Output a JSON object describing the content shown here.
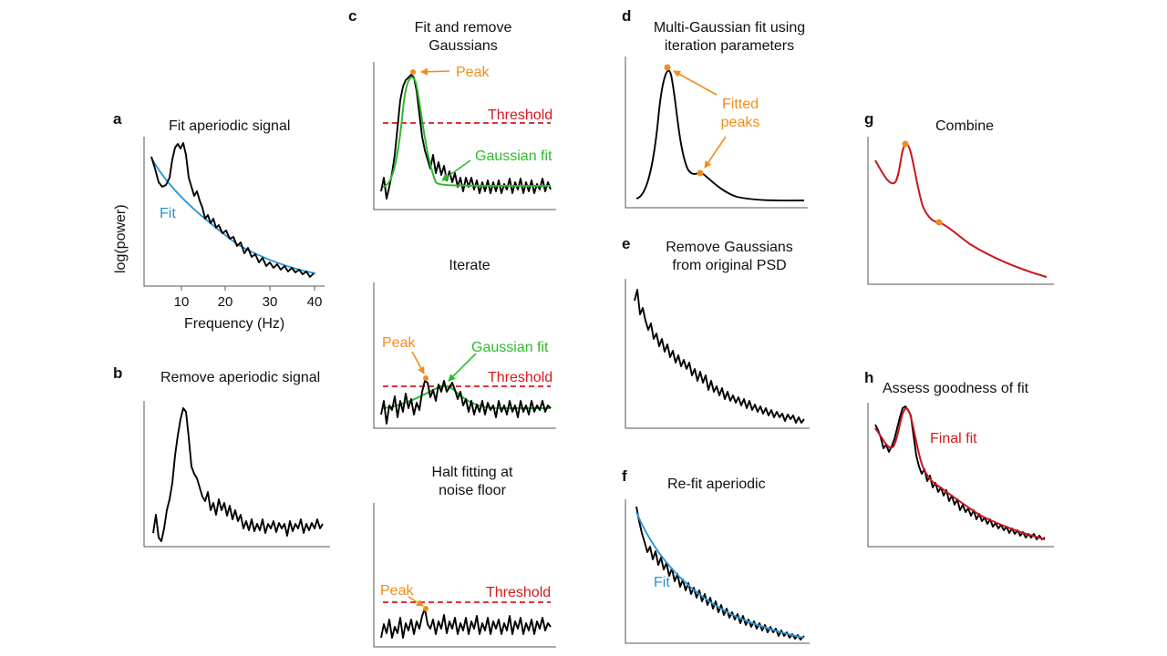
{
  "panels": {
    "a": {
      "letter": "a",
      "title": "Fit aperiodic signal",
      "ylabel": "log(power)",
      "xlabel": "Frequency (Hz)",
      "xticks": [
        "10",
        "20",
        "30",
        "40"
      ],
      "fit_label": "Fit"
    },
    "b": {
      "letter": "b",
      "title": "Remove aperiodic signal"
    },
    "c": {
      "letter": "c",
      "title_line1": "Fit and remove",
      "title_line2": "Gaussians",
      "peak": "Peak",
      "threshold": "Threshold",
      "gaussian_fit": "Gaussian fit"
    },
    "c2": {
      "title": "Iterate",
      "peak": "Peak",
      "threshold": "Threshold",
      "gaussian_fit": "Gaussian fit"
    },
    "c3": {
      "title_line1": "Halt fitting at",
      "title_line2": "noise floor",
      "peak": "Peak",
      "threshold": "Threshold"
    },
    "d": {
      "letter": "d",
      "title_line1": "Multi-Gaussian fit using",
      "title_line2": "iteration parameters",
      "peaks_line1": "Fitted",
      "peaks_line2": "peaks"
    },
    "e": {
      "letter": "e",
      "title_line1": "Remove Gaussians",
      "title_line2": "from original PSD"
    },
    "f": {
      "letter": "f",
      "title": "Re-fit aperiodic",
      "fit_label": "Fit"
    },
    "g": {
      "letter": "g",
      "title": "Combine"
    },
    "h": {
      "letter": "h",
      "title": "Assess goodness of fit",
      "final_fit": "Final fit"
    }
  },
  "colors": {
    "signal": "#000000",
    "aperiodic_fit": "#2a93d5",
    "gaussian_fit": "#2dbb2d",
    "threshold": "#d7191c",
    "peak_marker": "#f28c1a",
    "final_fit": "#c8161e"
  }
}
